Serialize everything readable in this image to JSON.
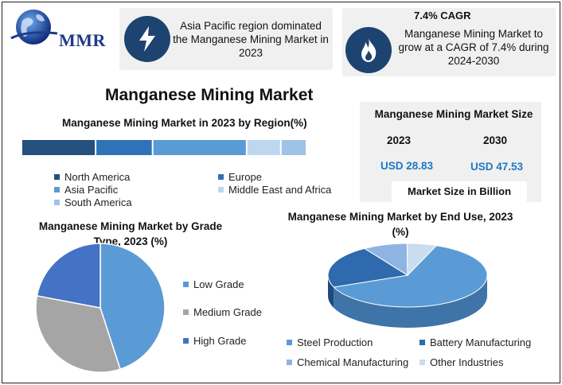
{
  "brand": {
    "logo_text": "MMR"
  },
  "card1": {
    "icon": "lightning-icon",
    "text": "Asia Pacific region dominated the Manganese Mining Market in 2023"
  },
  "card2": {
    "icon": "flame-icon",
    "heading": "7.4% CAGR",
    "text": "Manganese Mining Market to grow at a CAGR of 7.4% during 2024-2030"
  },
  "main_title": "Manganese Mining Market",
  "market_size": {
    "title": "Manganese Mining Market Size",
    "years": [
      "2023",
      "2030"
    ],
    "values": [
      "USD 28.83",
      "USD 47.53"
    ],
    "unit_label": "Market Size in Billion"
  },
  "colors": {
    "navy": "#1d4370",
    "north_america": "#24507e",
    "europe": "#2e72b8",
    "asia_pacific": "#5b9bd5",
    "mea": "#bdd7ee",
    "south_america": "#9dc3e6",
    "low_grade": "#5b9bd5",
    "medium_grade": "#a5a5a5",
    "high_grade": "#4472c4",
    "steel": "#5b9bd5",
    "battery": "#2e6aad",
    "chemical": "#8fb4e3",
    "other": "#c9dcf0"
  },
  "chart_data": [
    {
      "type": "bar",
      "title": "Manganese Mining Market in 2023 by Region(%)",
      "stacked": true,
      "orientation": "horizontal",
      "series": [
        {
          "name": "North America",
          "values": [
            26
          ]
        },
        {
          "name": "Europe",
          "values": [
            20
          ]
        },
        {
          "name": "Asia Pacific",
          "values": [
            33
          ]
        },
        {
          "name": "Middle East and Africa",
          "values": [
            12
          ]
        },
        {
          "name": "South America",
          "values": [
            9
          ]
        }
      ],
      "legend_labels": [
        "North America",
        "Europe",
        "Asia Pacific",
        "Middle East and Africa",
        "South America"
      ]
    },
    {
      "type": "pie",
      "title": "Manganese Mining Market by Grade Type, 2023  (%)",
      "categories": [
        "Low Grade",
        "Medium Grade",
        "High Grade"
      ],
      "values": [
        45,
        33,
        22
      ]
    },
    {
      "type": "pie",
      "title": "Manganese Mining Market by End Use, 2023  (%)",
      "categories": [
        "Steel Production",
        "Battery Manufacturing",
        "Chemical Manufacturing",
        "Other Industries"
      ],
      "values": [
        63,
        22,
        9,
        6
      ]
    }
  ]
}
